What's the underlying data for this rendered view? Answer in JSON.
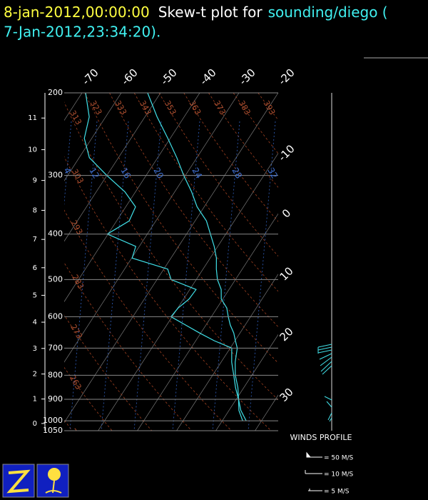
{
  "chart_data": {
    "type": "skewt",
    "header": {
      "time": "8-jan-2012,00:00:00",
      "title": "Skew-t plot for",
      "source": "sounding/diego (",
      "source_time": "7-Jan-2012,23:34:20)."
    },
    "ylim": [
      1050,
      200
    ],
    "log_scale": true,
    "yticks": [
      200,
      300,
      400,
      500,
      600,
      700,
      800,
      900,
      1000,
      1050
    ],
    "height_ticks": [
      0,
      1,
      2,
      3,
      4,
      5,
      6,
      7,
      8,
      9,
      10,
      11
    ],
    "xticks": [
      -70,
      -60,
      -50,
      -40,
      -30,
      -20,
      -10,
      0,
      10,
      20,
      30
    ],
    "grid": true,
    "dry_adiabat_labels": [
      253,
      263,
      273,
      283,
      293,
      303,
      313,
      323,
      333,
      343,
      353,
      363,
      373,
      383,
      393
    ],
    "mixing_ratio_labels": [
      4,
      12,
      16,
      20,
      24,
      28,
      32
    ],
    "levels": [
      200,
      225,
      250,
      275,
      300,
      325,
      350,
      375,
      400,
      425,
      450,
      475,
      500,
      525,
      550,
      575,
      600,
      625,
      650,
      675,
      700,
      750,
      800,
      850,
      900,
      950,
      1000
    ],
    "series": [
      {
        "color": "#40e0e8",
        "values": [
          -53.3,
          -46.9,
          -40.6,
          -35.1,
          -30.4,
          -25.7,
          -21.8,
          -17.1,
          -13.9,
          -10.9,
          -8.4,
          -6.6,
          -4.6,
          -2.0,
          -0.4,
          2.5,
          4.3,
          6.2,
          8.4,
          10.1,
          11.8,
          13.6,
          15.8,
          18.5,
          20.6,
          23.0,
          26.1
        ]
      },
      {
        "color": "#40e0e8",
        "values": [
          -69.1,
          -64.2,
          -61.9,
          -57.4,
          -50.0,
          -42.7,
          -37.5,
          -36.8,
          -40.2,
          -30.9,
          -29.9,
          -19.0,
          -16.4,
          -8.4,
          -8.6,
          -9.9,
          -10.3,
          -5.2,
          -0.3,
          4.7,
          10.4,
          12.7,
          15.4,
          17.9,
          20.6,
          22.5,
          25.2
        ]
      }
    ],
    "winds_title": "WINDS PROFILE",
    "winds_legend": [
      "= 50 M/S",
      "= 10 M/S",
      "= 5 M/S"
    ]
  }
}
